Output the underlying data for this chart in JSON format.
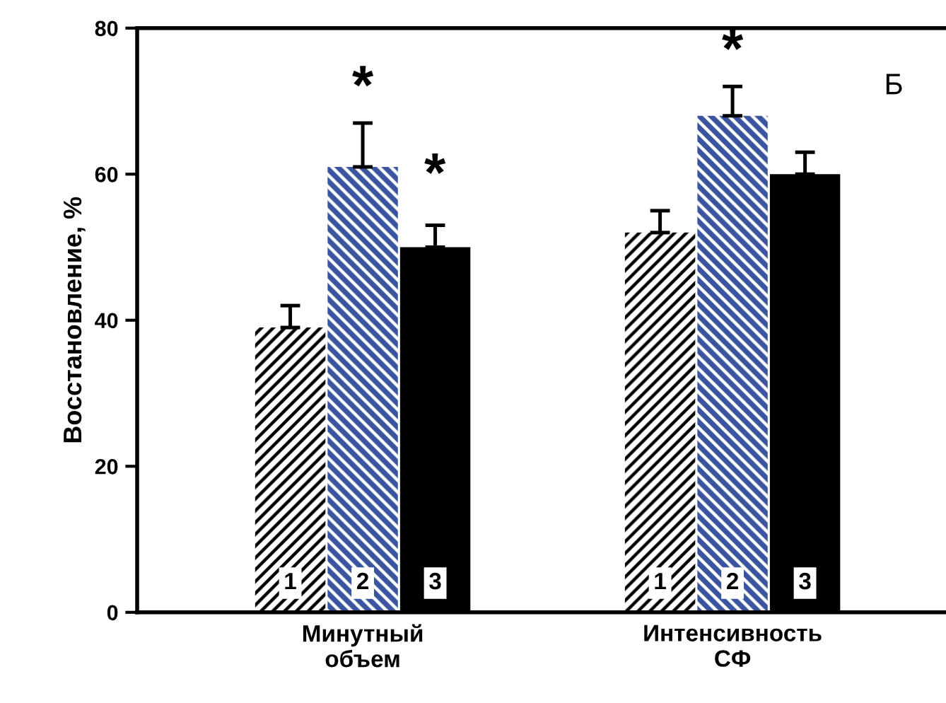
{
  "chart_data": {
    "type": "bar",
    "ylabel": "Восстановление, %",
    "categories": [
      "Минутный\nобъем",
      "Интенсивность\nСФ"
    ],
    "series": [
      {
        "name": "1",
        "color": "#000000",
        "values": [
          39,
          52
        ],
        "errors": [
          3,
          3
        ]
      },
      {
        "name": "2",
        "color": "#3a54a0",
        "values": [
          61,
          68
        ],
        "errors": [
          6,
          4
        ]
      },
      {
        "name": "3",
        "color": "#000000",
        "values": [
          50,
          60
        ],
        "errors": [
          3,
          3
        ]
      }
    ],
    "ylim": [
      0,
      80
    ],
    "yticks": [
      0,
      20,
      40,
      60,
      80
    ],
    "grid": false,
    "legend": false,
    "annotations": [
      {
        "text": "*",
        "x": "Минутный\nобъем",
        "y": 61
      },
      "*",
      {
        "text": "*",
        "x": "Интенсивность\nСФ",
        "y": 68
      },
      "Б"
    ]
  }
}
